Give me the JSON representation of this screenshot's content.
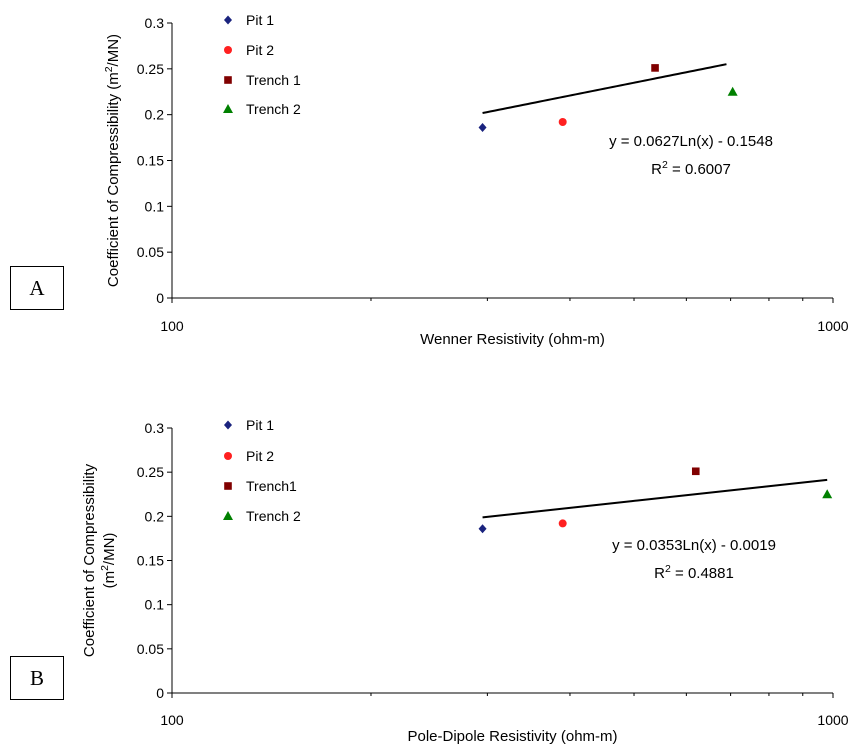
{
  "chart_data": [
    {
      "panel_label": "A",
      "type": "scatter",
      "xlabel": "Wenner Resistivity (ohm-m)",
      "ylabel": "Coefficient of Compressibility (m²/MN)",
      "xscale": "log",
      "xlim": [
        100,
        1000
      ],
      "ylim": [
        0,
        0.3
      ],
      "yticks": [
        "0",
        "0.05",
        "0.1",
        "0.15",
        "0.2",
        "0.25",
        "0.3"
      ],
      "xticks": [
        "100",
        "1000"
      ],
      "grid": false,
      "legend": "top-left",
      "series": [
        {
          "name": "Pit 1",
          "marker": "diamond",
          "color": "#1a237e",
          "x": [
            295
          ],
          "y": [
            0.186
          ]
        },
        {
          "name": "Pit 2",
          "marker": "circle",
          "color": "#ff2020",
          "x": [
            390
          ],
          "y": [
            0.192
          ]
        },
        {
          "name": "Trench 1",
          "marker": "square",
          "color": "#800000",
          "x": [
            538
          ],
          "y": [
            0.251
          ]
        },
        {
          "name": "Trench 2",
          "marker": "triangle",
          "color": "#008000",
          "x": [
            705
          ],
          "y": [
            0.225
          ]
        }
      ],
      "trendline": {
        "type": "log",
        "a": 0.0627,
        "b": -0.1548,
        "x_range": [
          295,
          690
        ]
      },
      "annotations": [
        "y = 0.0627Ln(x) - 0.1548",
        "R² = 0.6007"
      ]
    },
    {
      "panel_label": "B",
      "type": "scatter",
      "xlabel": "Pole-Dipole Resistivity (ohm-m)",
      "ylabel_lines": [
        "Coefficient of Compressibility",
        "(m²/MN)"
      ],
      "xscale": "log",
      "xlim": [
        100,
        1000
      ],
      "ylim": [
        0,
        0.3
      ],
      "yticks": [
        "0",
        "0.05",
        "0.1",
        "0.15",
        "0.2",
        "0.25",
        "0.3"
      ],
      "xticks": [
        "100",
        "1000"
      ],
      "grid": false,
      "legend": "top-left",
      "series": [
        {
          "name": "Pit 1",
          "marker": "diamond",
          "color": "#1a237e",
          "x": [
            295
          ],
          "y": [
            0.186
          ]
        },
        {
          "name": "Pit 2",
          "marker": "circle",
          "color": "#ff2020",
          "x": [
            390
          ],
          "y": [
            0.192
          ]
        },
        {
          "name": "Trench1",
          "marker": "square",
          "color": "#800000",
          "x": [
            620
          ],
          "y": [
            0.251
          ]
        },
        {
          "name": "Trench 2",
          "marker": "triangle",
          "color": "#008000",
          "x": [
            980
          ],
          "y": [
            0.225
          ]
        }
      ],
      "trendline": {
        "type": "log",
        "a": 0.0353,
        "b": -0.0019,
        "x_range": [
          295,
          980
        ]
      },
      "annotations": [
        "y = 0.0353Ln(x) - 0.0019",
        "R² = 0.4881"
      ]
    }
  ]
}
